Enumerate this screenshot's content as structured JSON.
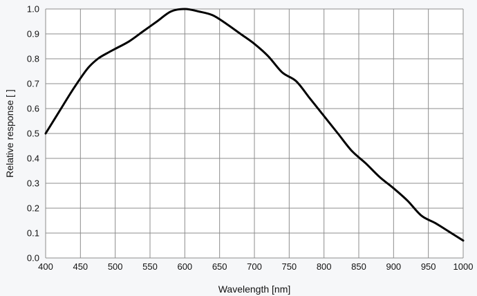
{
  "chart_data": {
    "type": "line",
    "title": "",
    "xlabel": "Wavelength [nm]",
    "ylabel": "Relative response [ ]",
    "xlim": [
      400,
      1000
    ],
    "ylim": [
      0.0,
      1.0
    ],
    "grid": true,
    "legend": "none",
    "x_ticks": [
      "400",
      "450",
      "500",
      "550",
      "600",
      "650",
      "700",
      "750",
      "800",
      "850",
      "900",
      "950",
      "1000"
    ],
    "y_ticks": [
      "0.0",
      "0.1",
      "0.2",
      "0.3",
      "0.4",
      "0.5",
      "0.6",
      "0.7",
      "0.8",
      "0.9",
      "1.0"
    ],
    "line_color": "#000000",
    "grid_color": "#8c8c8c",
    "series": [
      {
        "x": [
          400,
          420,
          440,
          460,
          475,
          490,
          500,
          520,
          540,
          560,
          580,
          600,
          620,
          640,
          660,
          680,
          700,
          720,
          740,
          760,
          780,
          800,
          820,
          840,
          860,
          880,
          900,
          920,
          940,
          960,
          980,
          1000
        ],
        "values": [
          0.5,
          0.59,
          0.68,
          0.76,
          0.8,
          0.825,
          0.84,
          0.87,
          0.91,
          0.95,
          0.99,
          1.0,
          0.99,
          0.975,
          0.94,
          0.9,
          0.86,
          0.81,
          0.745,
          0.71,
          0.64,
          0.57,
          0.5,
          0.43,
          0.38,
          0.325,
          0.28,
          0.23,
          0.17,
          0.14,
          0.105,
          0.07
        ]
      }
    ]
  }
}
